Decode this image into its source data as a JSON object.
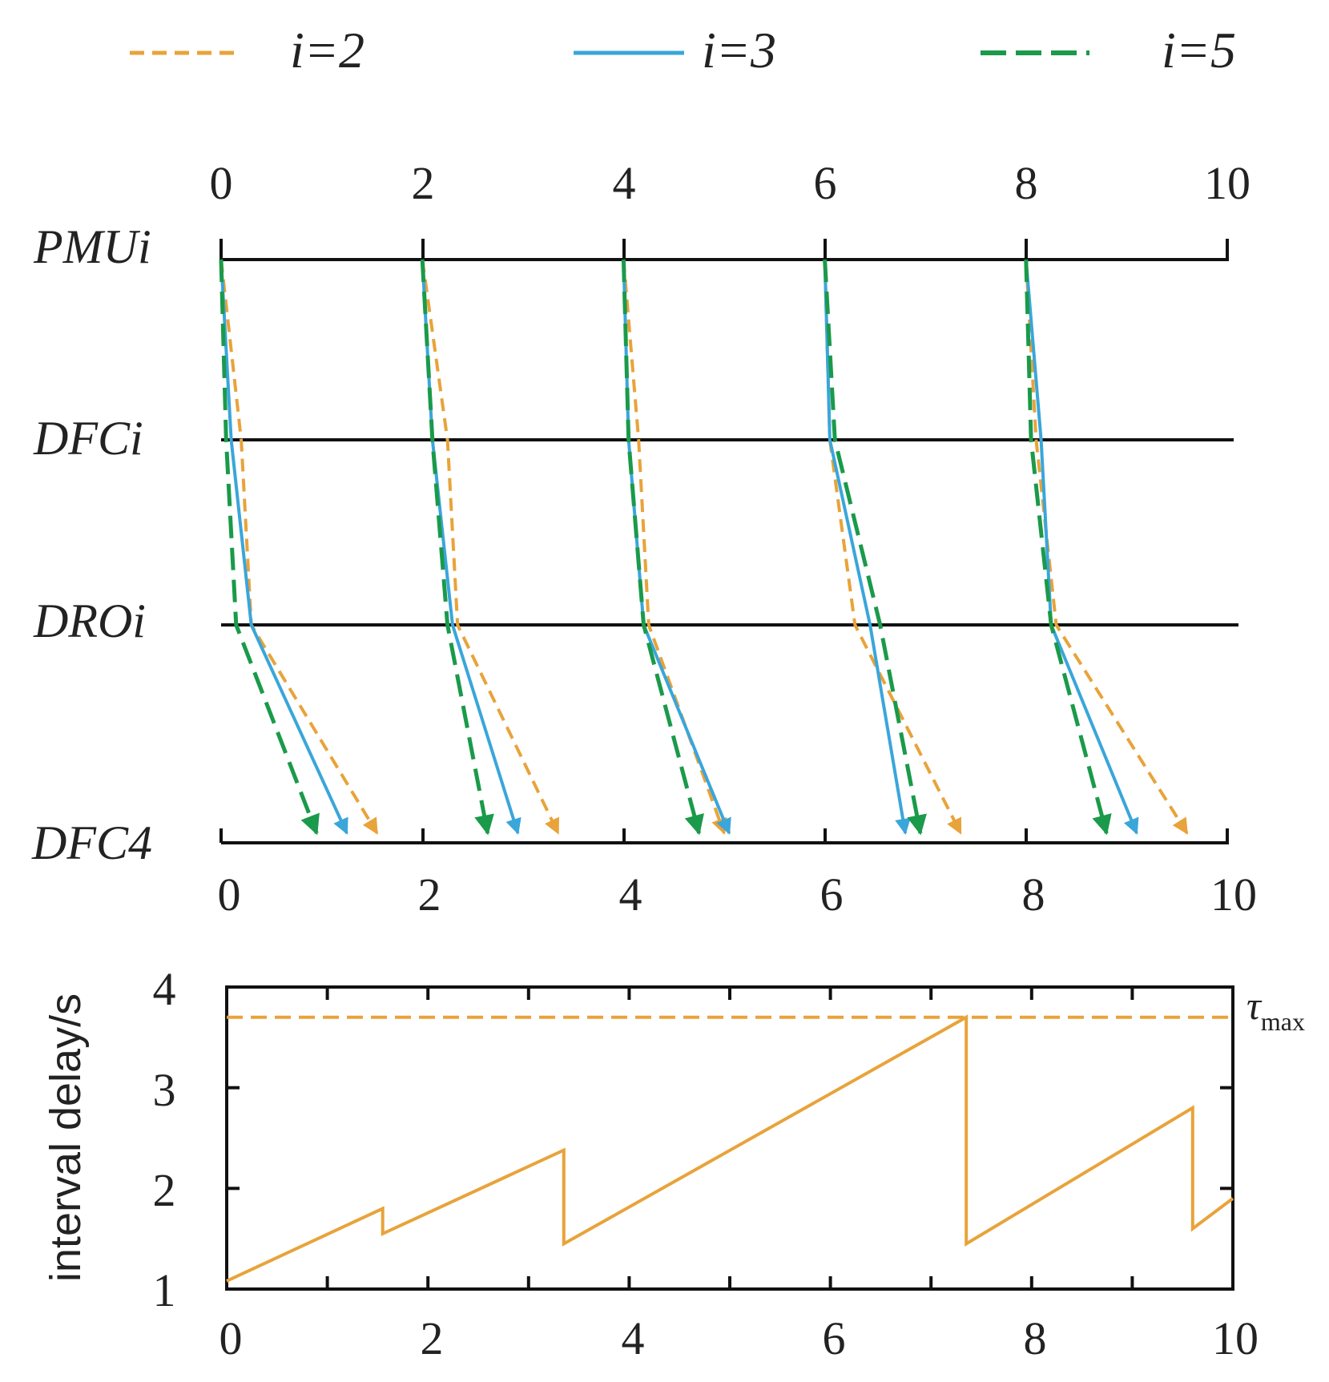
{
  "colors": {
    "i2": "#E8A33A",
    "i3": "#3AA6DA",
    "i5": "#1A9A4A",
    "axis": "#111111",
    "background": "#ffffff"
  },
  "chart_data": [
    {
      "type": "line",
      "name": "timing-diagram",
      "legend": [
        {
          "key": "i2",
          "label": "i=2",
          "style": "dashed-short"
        },
        {
          "key": "i3",
          "label": "i=3",
          "style": "solid"
        },
        {
          "key": "i5",
          "label": "i=5",
          "style": "dashed-long"
        }
      ],
      "top_axis_ticks": [
        "0",
        "2",
        "4",
        "6",
        "8",
        "10"
      ],
      "bottom_axis_ticks": [
        "0",
        "2",
        "4",
        "6",
        "8",
        "10"
      ],
      "xlim": [
        0,
        10
      ],
      "rows": [
        "PMUi",
        "DFCi",
        "DROi",
        "DFC4"
      ],
      "series": [
        {
          "key": "i2",
          "paths": [
            [
              0.0,
              0.2,
              0.3,
              1.55
            ],
            [
              2.0,
              2.25,
              2.35,
              3.35
            ],
            [
              4.0,
              4.15,
              4.25,
              5.0
            ],
            [
              6.0,
              6.05,
              6.3,
              7.35
            ],
            [
              8.0,
              8.1,
              8.3,
              9.6
            ]
          ]
        },
        {
          "key": "i3",
          "paths": [
            [
              0.0,
              0.1,
              0.3,
              1.25
            ],
            [
              2.0,
              2.1,
              2.3,
              2.95
            ],
            [
              4.0,
              4.05,
              4.2,
              5.05
            ],
            [
              6.0,
              6.05,
              6.45,
              6.8
            ],
            [
              8.0,
              8.15,
              8.25,
              9.1
            ]
          ]
        },
        {
          "key": "i5",
          "paths": [
            [
              0.0,
              0.05,
              0.15,
              0.95
            ],
            [
              2.0,
              2.1,
              2.25,
              2.65
            ],
            [
              4.0,
              4.05,
              4.2,
              4.75
            ],
            [
              6.0,
              6.1,
              6.55,
              6.95
            ],
            [
              8.0,
              8.05,
              8.25,
              8.8
            ]
          ]
        }
      ]
    },
    {
      "type": "line",
      "name": "interval-delay",
      "ylabel": "interval delay/s",
      "xlabel": "",
      "xlim": [
        0,
        10
      ],
      "ylim": [
        1,
        4
      ],
      "x_ticks": [
        "0",
        "2",
        "4",
        "6",
        "8",
        "10"
      ],
      "y_ticks": [
        "1",
        "2",
        "3",
        "4"
      ],
      "tau_max": 3.7,
      "tau_label": "τ",
      "tau_sub": "max",
      "series": [
        {
          "name": "i=2",
          "x": [
            0,
            1.55,
            1.55,
            3.35,
            3.35,
            7.35,
            7.35,
            9.6,
            9.6,
            10
          ],
          "y": [
            1.08,
            1.8,
            1.55,
            2.38,
            1.45,
            3.7,
            1.45,
            2.8,
            1.6,
            1.9
          ]
        }
      ]
    }
  ]
}
